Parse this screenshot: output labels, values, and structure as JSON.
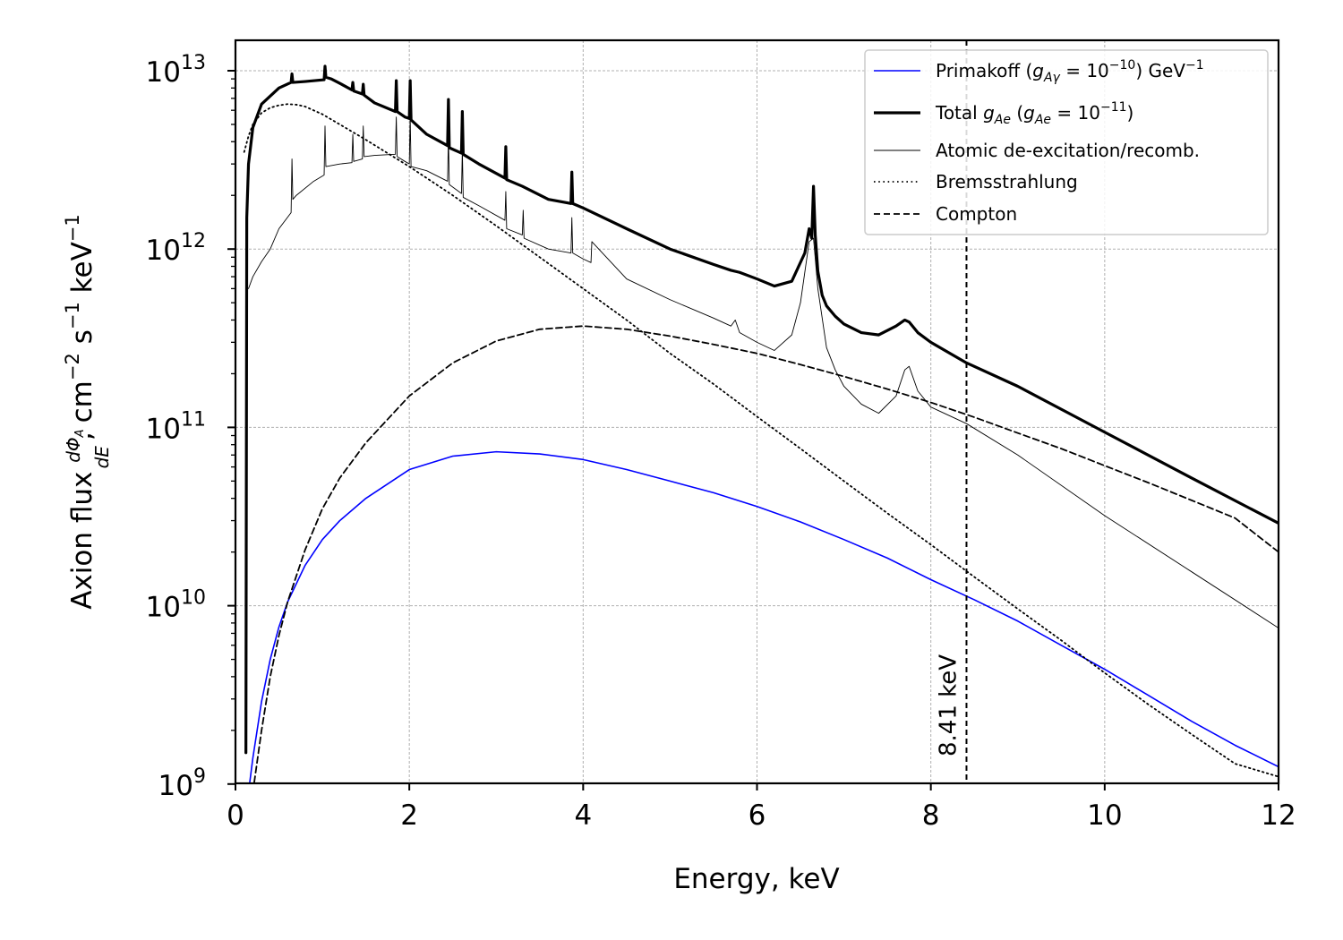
{
  "chart_data": {
    "type": "line",
    "title": "",
    "xlabel": "Energy, keV",
    "ylabel": {
      "prefix": "Axion flux ",
      "frac_num": "dΦ",
      "frac_num_sub": "A",
      "frac_den": "dE",
      "suffix": ", cm",
      "exp1": "−2",
      "mid": " s",
      "exp2": "−1",
      "end": " keV",
      "exp3": "−1"
    },
    "xlim": [
      0,
      12
    ],
    "ylim": [
      1000000000.0,
      14000000000000.0
    ],
    "yscale": "log",
    "grid": true,
    "legend_position": "top-right",
    "x_ticks": [
      0,
      2,
      4,
      6,
      8,
      10,
      12
    ],
    "x_tick_labels": [
      "0",
      "2",
      "4",
      "6",
      "8",
      "10",
      "12"
    ],
    "y_ticks": [
      1000000000.0,
      10000000000.0,
      100000000000.0,
      1000000000000.0,
      10000000000000.0
    ],
    "y_tick_labels": [
      {
        "base": "10",
        "exp": "9"
      },
      {
        "base": "10",
        "exp": "10"
      },
      {
        "base": "10",
        "exp": "11"
      },
      {
        "base": "10",
        "exp": "12"
      },
      {
        "base": "10",
        "exp": "13"
      }
    ],
    "legend": [
      {
        "key": "primakoff",
        "text_pre": "Primakoff (",
        "math1": "g",
        "math1_sub": "Aγ",
        "eq": " = 10",
        "eq_exp": "−10",
        "text_post": ") GeV",
        "post_exp": "−1"
      },
      {
        "key": "total",
        "text_pre": "Total ",
        "math1": "g",
        "math1_sub": "Ae",
        "mid": " (",
        "math2": "g",
        "math2_sub": "Ae",
        "eq": " = 10",
        "eq_exp": "−11",
        "text_post": ")"
      },
      {
        "key": "atomic",
        "text_pre": "Atomic de-excitation/recomb."
      },
      {
        "key": "brems",
        "text_pre": "Bremsstrahlung"
      },
      {
        "key": "compton",
        "text_pre": "Compton"
      }
    ],
    "vline": {
      "x": 8.41,
      "label": "8.41 keV"
    },
    "series": [
      {
        "name": "Primakoff",
        "key": "primakoff",
        "color": "#0000ff",
        "style": "solid",
        "x": [
          0.15,
          0.2,
          0.3,
          0.4,
          0.5,
          0.6,
          0.8,
          1.0,
          1.2,
          1.5,
          2.0,
          2.5,
          3.0,
          3.5,
          4.0,
          4.5,
          5.0,
          5.5,
          6.0,
          6.5,
          7.0,
          7.5,
          8.0,
          8.5,
          9.0,
          9.5,
          10.0,
          10.5,
          11.0,
          11.5,
          12.0
        ],
        "y": [
          900000000.0,
          1400000000.0,
          2900000000.0,
          5000000000.0,
          7600000000.0,
          10500000000.0,
          16800000000.0,
          23500000000.0,
          30000000000.0,
          40000000000.0,
          58000000000.0,
          69000000000.0,
          73000000000.0,
          71000000000.0,
          66000000000.0,
          58000000000.0,
          50000000000.0,
          43000000000.0,
          36000000000.0,
          29500000000.0,
          23500000000.0,
          18500000000.0,
          14000000000.0,
          10800000000.0,
          8200000000.0,
          6000000000.0,
          4400000000.0,
          3150000000.0,
          2250000000.0,
          1650000000.0,
          1250000000.0
        ]
      },
      {
        "name": "Total",
        "key": "total",
        "color": "#000000",
        "style": "thick",
        "x": [
          0.12,
          0.13,
          0.15,
          0.2,
          0.3,
          0.5,
          0.64,
          0.65,
          0.66,
          0.8,
          1.02,
          1.03,
          1.04,
          1.1,
          1.2,
          1.34,
          1.35,
          1.36,
          1.46,
          1.47,
          1.48,
          1.6,
          1.84,
          1.85,
          1.86,
          1.95,
          2.0,
          2.01,
          2.02,
          2.2,
          2.44,
          2.45,
          2.46,
          2.6,
          2.61,
          2.62,
          2.8,
          3.1,
          3.11,
          3.12,
          3.3,
          3.6,
          3.86,
          3.87,
          3.88,
          4.0,
          4.5,
          5.0,
          5.5,
          5.7,
          5.8,
          6.0,
          6.2,
          6.4,
          6.55,
          6.6,
          6.63,
          6.65,
          6.67,
          6.7,
          6.75,
          6.8,
          6.9,
          7.0,
          7.2,
          7.4,
          7.6,
          7.7,
          7.75,
          7.85,
          8.0,
          8.41,
          9.0,
          10.0,
          11.0,
          12.0
        ],
        "y": [
          1500000000.0,
          1500000000000.0,
          3000000000000.0,
          4800000000000.0,
          6500000000000.0,
          8000000000000.0,
          8600000000000.0,
          9600000000000.0,
          8600000000000.0,
          8700000000000.0,
          8900000000000.0,
          10600000000000.0,
          9200000000000.0,
          9000000000000.0,
          8500000000000.0,
          7800000000000.0,
          8600000000000.0,
          7700000000000.0,
          7400000000000.0,
          8400000000000.0,
          7300000000000.0,
          6600000000000.0,
          5900000000000.0,
          8800000000000.0,
          5900000000000.0,
          5500000000000.0,
          5400000000000.0,
          8800000000000.0,
          5300000000000.0,
          4400000000000.0,
          3800000000000.0,
          6900000000000.0,
          3700000000000.0,
          3450000000000.0,
          5900000000000.0,
          3400000000000.0,
          3000000000000.0,
          2500000000000.0,
          3750000000000.0,
          2450000000000.0,
          2250000000000.0,
          1900000000000.0,
          1800000000000.0,
          2700000000000.0,
          1800000000000.0,
          1700000000000.0,
          1300000000000.0,
          1000000000000.0,
          820000000000.0,
          760000000000.0,
          740000000000.0,
          680000000000.0,
          620000000000.0,
          660000000000.0,
          950000000000.0,
          1300000000000.0,
          1150000000000.0,
          2250000000000.0,
          1200000000000.0,
          750000000000.0,
          550000000000.0,
          480000000000.0,
          420000000000.0,
          380000000000.0,
          340000000000.0,
          330000000000.0,
          370000000000.0,
          400000000000.0,
          390000000000.0,
          340000000000.0,
          300000000000.0,
          230000000000.0,
          170000000000.0,
          94000000000.0,
          52000000000.0,
          29000000000.0
        ]
      },
      {
        "name": "Atomic de-excitation/recomb.",
        "key": "atomic",
        "color": "#000000",
        "style": "thin",
        "x": [
          0.15,
          0.2,
          0.3,
          0.4,
          0.5,
          0.64,
          0.65,
          0.66,
          0.7,
          0.9,
          1.02,
          1.03,
          1.04,
          1.2,
          1.34,
          1.35,
          1.36,
          1.46,
          1.47,
          1.48,
          1.6,
          1.84,
          1.85,
          1.86,
          1.95,
          2.0,
          2.01,
          2.02,
          2.2,
          2.44,
          2.45,
          2.46,
          2.6,
          2.61,
          2.62,
          2.8,
          3.1,
          3.11,
          3.12,
          3.3,
          3.31,
          3.32,
          3.6,
          3.86,
          3.87,
          3.88,
          4.0,
          4.09,
          4.1,
          4.5,
          5.0,
          5.5,
          5.7,
          5.75,
          5.8,
          6.0,
          6.2,
          6.4,
          6.5,
          6.6,
          6.65,
          6.7,
          6.8,
          6.9,
          7.0,
          7.2,
          7.4,
          7.6,
          7.7,
          7.75,
          7.85,
          8.0,
          8.41,
          9.0,
          10.0,
          11.0,
          12.0
        ],
        "y": [
          600000000000.0,
          700000000000.0,
          850000000000.0,
          1000000000000.0,
          1300000000000.0,
          1600000000000.0,
          3200000000000.0,
          1900000000000.0,
          2000000000000.0,
          2400000000000.0,
          2600000000000.0,
          4900000000000.0,
          2900000000000.0,
          3000000000000.0,
          3050000000000.0,
          4400000000000.0,
          3100000000000.0,
          3200000000000.0,
          4900000000000.0,
          3300000000000.0,
          3350000000000.0,
          3400000000000.0,
          5500000000000.0,
          3300000000000.0,
          3100000000000.0,
          3000000000000.0,
          5500000000000.0,
          2900000000000.0,
          2750000000000.0,
          2400000000000.0,
          4300000000000.0,
          2300000000000.0,
          2050000000000.0,
          3600000000000.0,
          1950000000000.0,
          1750000000000.0,
          1450000000000.0,
          2100000000000.0,
          1300000000000.0,
          1200000000000.0,
          1650000000000.0,
          1150000000000.0,
          1000000000000.0,
          950000000000.0,
          1500000000000.0,
          950000000000.0,
          880000000000.0,
          840000000000.0,
          1100000000000.0,
          680000000000.0,
          520000000000.0,
          410000000000.0,
          370000000000.0,
          400000000000.0,
          340000000000.0,
          300000000000.0,
          270000000000.0,
          330000000000.0,
          500000000000.0,
          1100000000000.0,
          1150000000000.0,
          600000000000.0,
          280000000000.0,
          210000000000.0,
          170000000000.0,
          135000000000.0,
          120000000000.0,
          150000000000.0,
          210000000000.0,
          220000000000.0,
          160000000000.0,
          130000000000.0,
          105000000000.0,
          70000000000.0,
          32000000000.0,
          15500000000.0,
          7500000000.0
        ]
      },
      {
        "name": "Bremsstrahlung",
        "key": "brems",
        "color": "#000000",
        "style": "dotted",
        "x": [
          0.1,
          0.15,
          0.2,
          0.3,
          0.4,
          0.5,
          0.6,
          0.7,
          0.8,
          1.0,
          1.2,
          1.5,
          2.0,
          2.5,
          3.0,
          3.5,
          4.0,
          4.5,
          5.0,
          5.5,
          6.0,
          6.5,
          7.0,
          7.5,
          8.0,
          8.5,
          9.0,
          9.5,
          10.0,
          10.5,
          11.0,
          11.5,
          12.0
        ],
        "y": [
          3500000000000.0,
          4300000000000.0,
          5000000000000.0,
          5800000000000.0,
          6200000000000.0,
          6400000000000.0,
          6500000000000.0,
          6450000000000.0,
          6300000000000.0,
          5700000000000.0,
          5000000000000.0,
          4100000000000.0,
          2900000000000.0,
          2000000000000.0,
          1350000000000.0,
          900000000000.0,
          600000000000.0,
          400000000000.0,
          260000000000.0,
          175000000000.0,
          115000000000.0,
          76000000000.0,
          50000000000.0,
          33000000000.0,
          22000000000.0,
          14500000000.0,
          9600000000.0,
          6400000000.0,
          4200000000.0,
          2800000000.0,
          1900000000.0,
          1300000000.0,
          1100000000.0
        ]
      },
      {
        "name": "Compton",
        "key": "compton",
        "color": "#000000",
        "style": "dashed",
        "x": [
          0.2,
          0.3,
          0.4,
          0.5,
          0.6,
          0.8,
          1.0,
          1.2,
          1.5,
          2.0,
          2.5,
          3.0,
          3.5,
          4.0,
          4.5,
          5.0,
          5.5,
          6.0,
          6.5,
          7.0,
          7.5,
          8.0,
          8.5,
          9.0,
          9.5,
          10.0,
          10.5,
          11.0,
          11.5,
          12.0
        ],
        "y": [
          900000000.0,
          2000000000.0,
          4000000000.0,
          6800000000.0,
          10500000000.0,
          20500000000.0,
          35000000000.0,
          52000000000.0,
          82000000000.0,
          150000000000.0,
          230000000000.0,
          305000000000.0,
          355000000000.0,
          370000000000.0,
          355000000000.0,
          325000000000.0,
          292000000000.0,
          260000000000.0,
          225000000000.0,
          193000000000.0,
          164000000000.0,
          138000000000.0,
          114000000000.0,
          93000000000.0,
          76000000000.0,
          61000000000.0,
          49000000000.0,
          39000000000.0,
          31000000000.0,
          20000000000.0
        ]
      }
    ]
  }
}
